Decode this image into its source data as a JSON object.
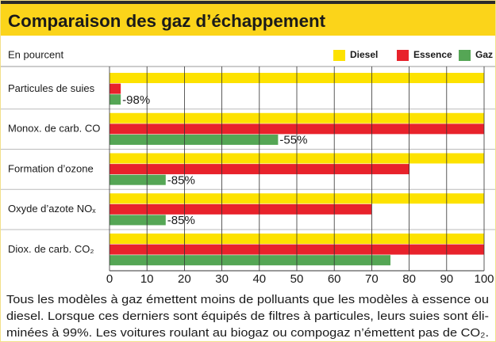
{
  "chart_data": {
    "type": "bar",
    "orientation": "horizontal",
    "title": "Comparaison des gaz d’échappement",
    "subtitle": "En pourcent",
    "categories": [
      "Particules de suies",
      "Monox. de carb. CO",
      "Formation d’ozone",
      "Oxyde d’azote NOₓ",
      "Diox. de carb. CO₂"
    ],
    "series": [
      {
        "name": "Diesel",
        "color": "#fde200",
        "values": [
          100,
          100,
          100,
          100,
          100
        ]
      },
      {
        "name": "Essence",
        "color": "#e8222b",
        "values": [
          3,
          100,
          80,
          70,
          100
        ]
      },
      {
        "name": "Gaz",
        "color": "#55a655",
        "values": [
          3,
          45,
          15,
          15,
          75
        ]
      }
    ],
    "annotations": [
      "-98%",
      "-55%",
      "-85%",
      "-85%",
      null
    ],
    "xlim": [
      0,
      100
    ],
    "xticks": [
      0,
      10,
      20,
      30,
      40,
      50,
      60,
      70,
      80,
      90,
      100
    ],
    "grid": true,
    "legend": "top-right",
    "footnote": [
      "Tous les modèles à gaz émettent moins de polluants que les modèles à essence ou",
      "diesel. Lorsque ces derniers sont équipés de filtres à particules, leurs suies sont éli-",
      "minées à 99%. Les voitures roulant au biogaz ou compogaz n’émettent pas de CO₂."
    ]
  }
}
